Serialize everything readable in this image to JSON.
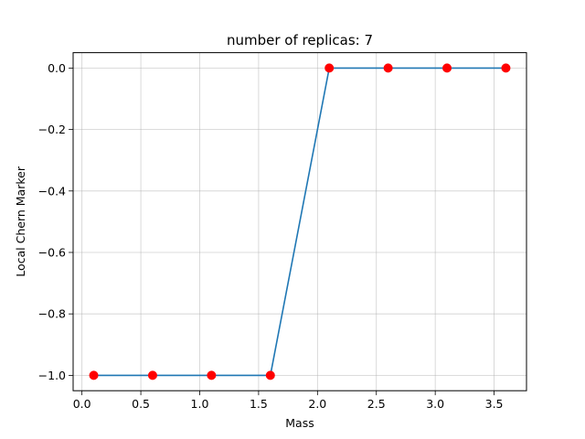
{
  "chart_data": {
    "type": "line",
    "title": "number of replicas: 7",
    "xlabel": "Mass",
    "ylabel": "Local Chern Marker",
    "xlim": [
      -0.075,
      3.775
    ],
    "ylim": [
      -1.05,
      0.05
    ],
    "grid": true,
    "x_ticks": [
      0.0,
      0.5,
      1.0,
      1.5,
      2.0,
      2.5,
      3.0,
      3.5
    ],
    "x_tick_labels": [
      "0.0",
      "0.5",
      "1.0",
      "1.5",
      "2.0",
      "2.5",
      "3.0",
      "3.5"
    ],
    "y_ticks": [
      0.0,
      -0.2,
      -0.4,
      -0.6,
      -0.8,
      -1.0
    ],
    "y_tick_labels": [
      "0.0",
      "−0.2",
      "−0.4",
      "−0.6",
      "−0.8",
      "−1.0"
    ],
    "series": [
      {
        "line_color": "#1f77b4",
        "marker_color": "#ff0000",
        "x": [
          0.1,
          0.6,
          1.1,
          1.6,
          2.1,
          2.6,
          3.1,
          3.6
        ],
        "y": [
          -1.0,
          -1.0,
          -1.0,
          -1.0,
          0.0,
          0.0,
          0.0,
          0.0
        ]
      }
    ]
  }
}
